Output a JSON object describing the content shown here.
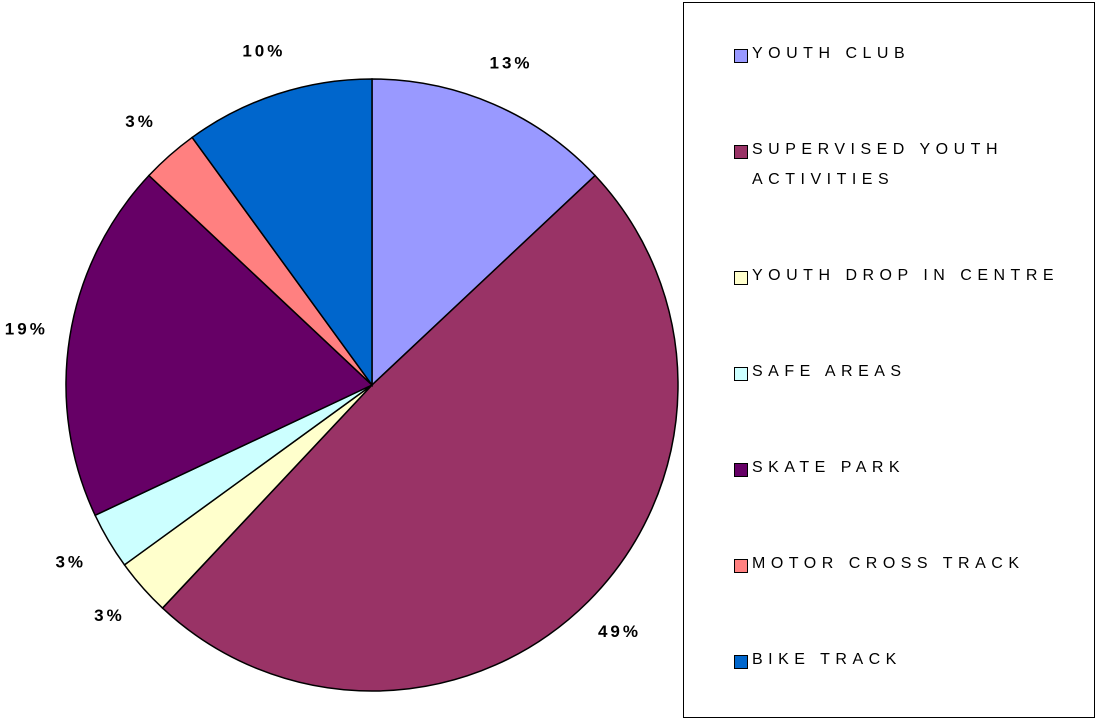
{
  "chart_data": {
    "type": "pie",
    "categories": [
      "YOUTH CLUB",
      "SUPERVISED YOUTH ACTIVITIES",
      "YOUTH DROP IN CENTRE",
      "SAFE AREAS",
      "SKATE PARK",
      "MOTOR CROSS TRACK",
      "BIKE TRACK"
    ],
    "values": [
      13,
      49,
      3,
      3,
      19,
      3,
      10
    ],
    "value_labels": [
      "13%",
      "49%",
      "3%",
      "3%",
      "19%",
      "3%",
      "10%"
    ],
    "colors": [
      "#9999ff",
      "#993366",
      "#ffffcc",
      "#ccffff",
      "#660066",
      "#ff8080",
      "#0066cc"
    ]
  }
}
